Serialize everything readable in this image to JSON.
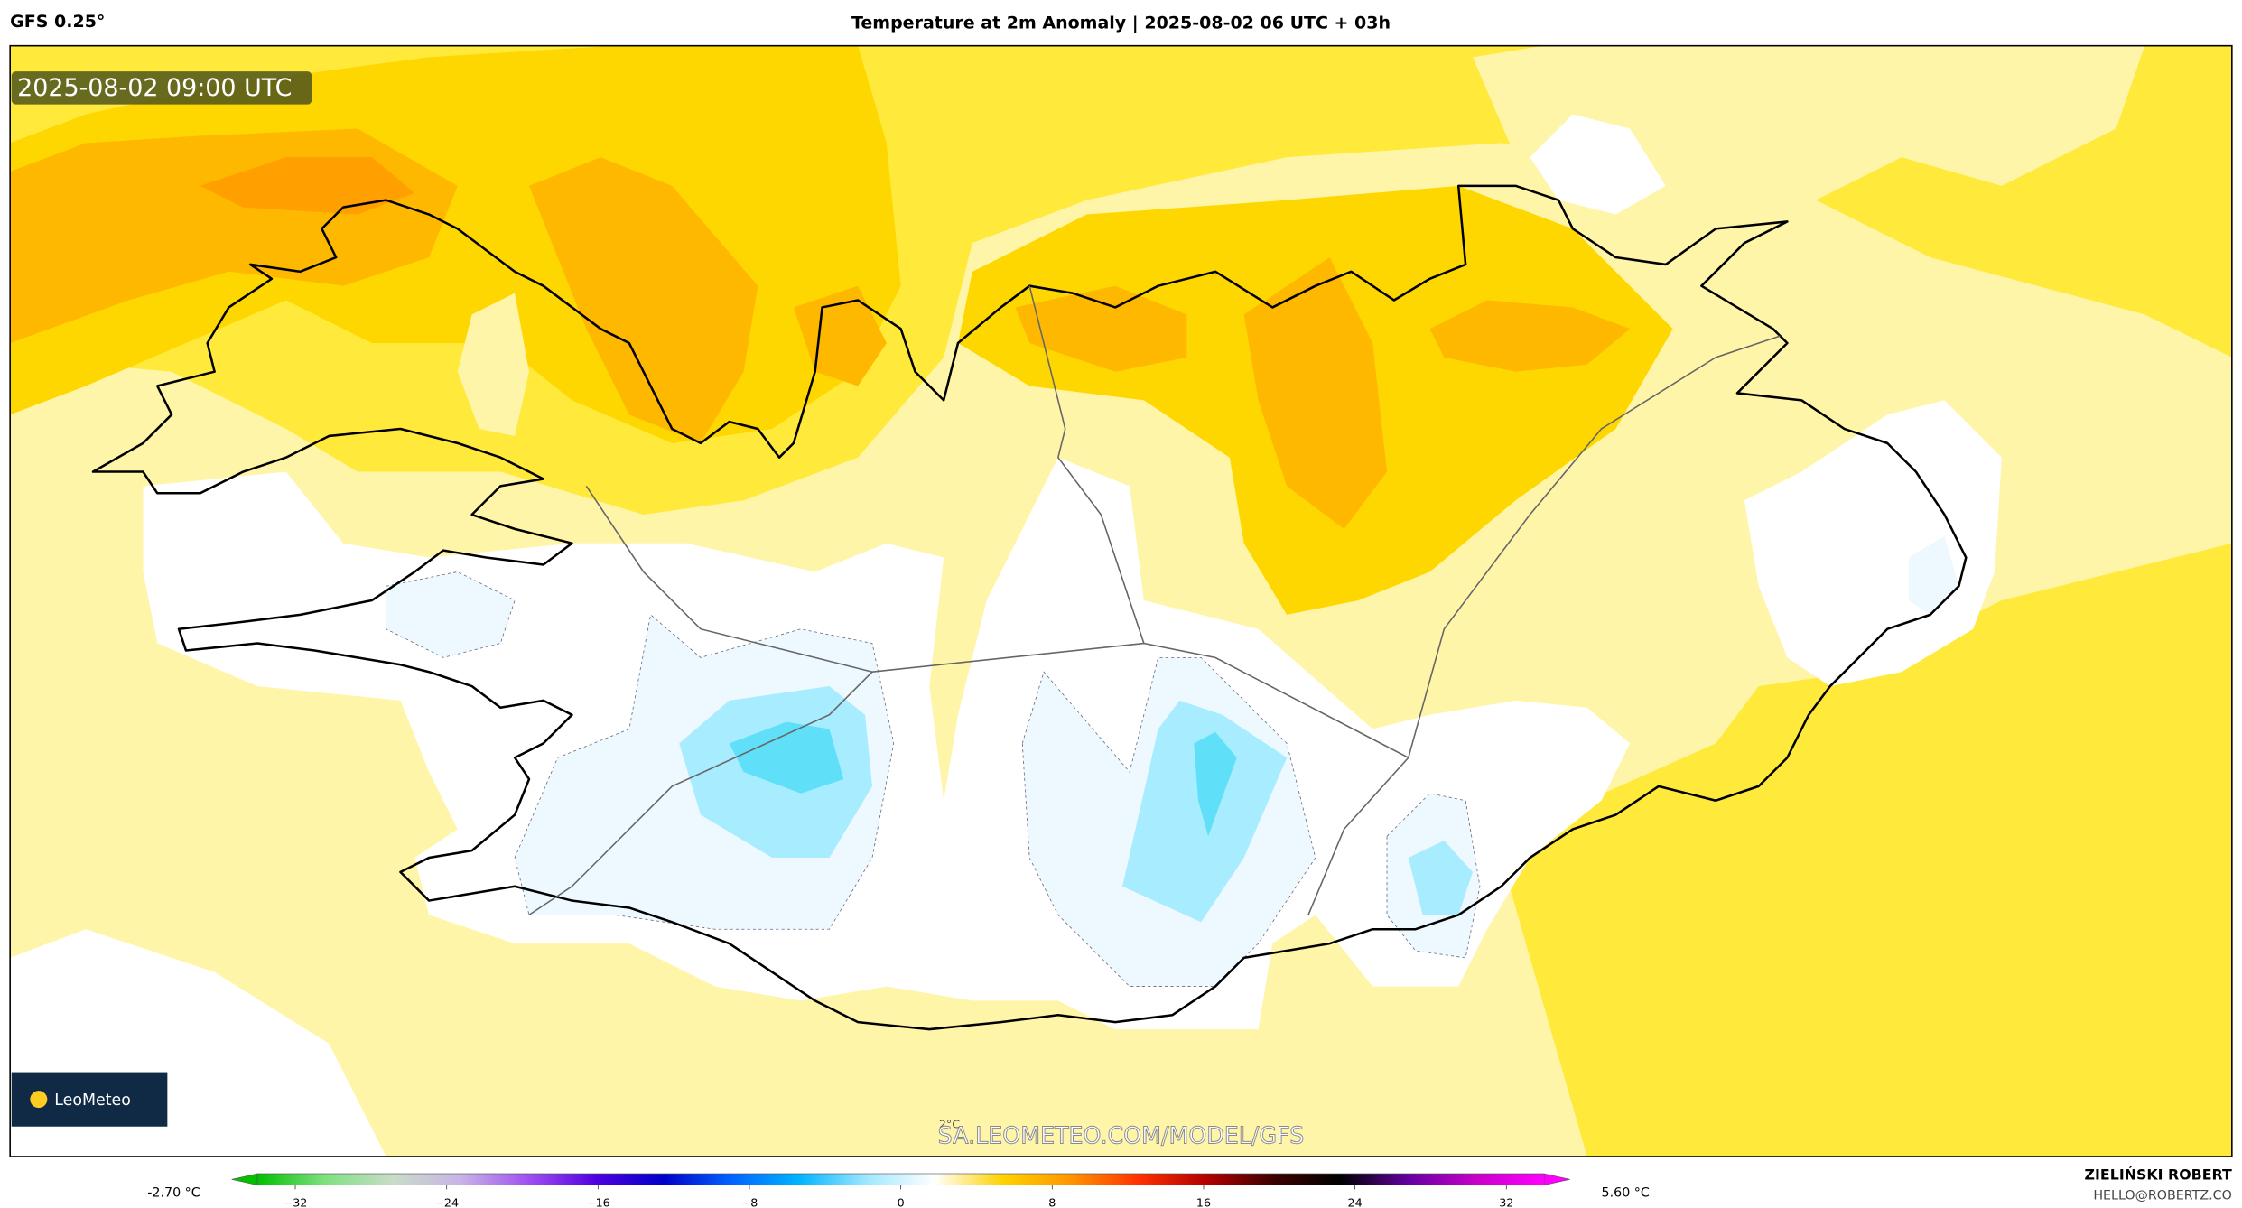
{
  "header": {
    "model": "GFS 0.25°",
    "title": "Temperature at 2m Anomaly | 2025-08-02 06 UTC + 03h",
    "valid_time": "2025-08-02 09:00 UTC"
  },
  "map": {
    "contour_label": "2°C",
    "watermark": "SA.LEOMETEO.COM/MODEL/GFS",
    "logo": "LeoMeteo"
  },
  "colorbar": {
    "min_label": "-2.70 °C",
    "max_label": "5.60 °C",
    "range": [
      -34,
      34
    ],
    "ticks": [
      {
        "value": -32,
        "label": "−32"
      },
      {
        "value": -24,
        "label": "−24"
      },
      {
        "value": -16,
        "label": "−16"
      },
      {
        "value": -8,
        "label": "−8"
      },
      0,
      8,
      16,
      24,
      32
    ],
    "colors": [
      "#00c000",
      "#80e080",
      "#c8dcc8",
      "#c8b4e6",
      "#a050f0",
      "#5000e0",
      "#0000c8",
      "#0064ff",
      "#00b4ff",
      "#a0e8ff",
      "#ffffff",
      "#ffd200",
      "#ff9600",
      "#ff3200",
      "#b40000",
      "#3c0000",
      "#000000",
      "#6400a0",
      "#c800c8",
      "#ff00ff"
    ]
  },
  "footer": {
    "author": "ZIELIŃSKI ROBERT",
    "email": "HELLO@ROBERTZ.CO"
  }
}
